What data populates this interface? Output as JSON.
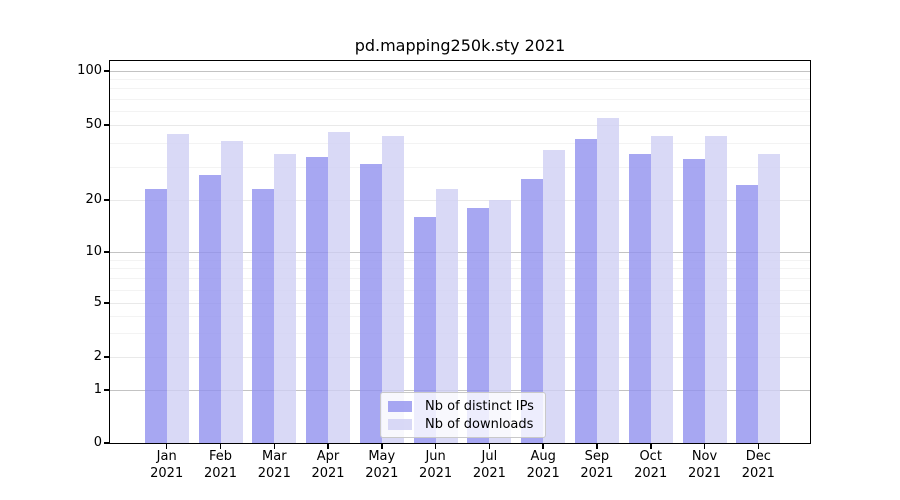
{
  "figure": {
    "title": "pd.mapping250k.sty 2021"
  },
  "legend": {
    "items": [
      {
        "label": "Nb of distinct IPs",
        "color": "#9191ef"
      },
      {
        "label": "Nb of downloads",
        "color": "#cfcff4"
      }
    ]
  },
  "y_axis": {
    "ticks": [
      {
        "label": "100",
        "value": 100
      },
      {
        "label": "50",
        "value": 50
      },
      {
        "label": "20",
        "value": 20
      },
      {
        "label": "10",
        "value": 10
      },
      {
        "label": "5",
        "value": 5
      },
      {
        "label": "2",
        "value": 2
      },
      {
        "label": "1",
        "value": 1
      },
      {
        "label": "0",
        "value": 0
      }
    ],
    "strong_gridline_values": [
      1,
      10,
      100
    ],
    "minor_gridline_values": [
      3,
      4,
      6,
      7,
      8,
      9,
      30,
      40,
      60,
      70,
      80,
      90
    ]
  },
  "x_axis": {
    "months": [
      "Jan",
      "Feb",
      "Mar",
      "Apr",
      "May",
      "Jun",
      "Jul",
      "Aug",
      "Sep",
      "Oct",
      "Nov",
      "Dec"
    ],
    "year": "2021"
  },
  "chart_data": {
    "type": "bar",
    "title": "pd.mapping250k.sty 2021",
    "categories": [
      "Jan 2021",
      "Feb 2021",
      "Mar 2021",
      "Apr 2021",
      "May 2021",
      "Jun 2021",
      "Jul 2021",
      "Aug 2021",
      "Sep 2021",
      "Oct 2021",
      "Nov 2021",
      "Dec 2021"
    ],
    "series": [
      {
        "name": "Nb of distinct IPs",
        "color": "#9191ef",
        "values": [
          23,
          27,
          23,
          34,
          31,
          16,
          18,
          26,
          42,
          35,
          33,
          24
        ]
      },
      {
        "name": "Nb of downloads",
        "color": "#cfcff4",
        "values": [
          45,
          41,
          35,
          46,
          44,
          23,
          20,
          37,
          55,
          44,
          44,
          35
        ]
      }
    ],
    "yscale": "symlog (log above 1, linear 0-1)",
    "y_ticks": [
      0,
      1,
      2,
      5,
      10,
      20,
      50,
      100
    ],
    "ylim": [
      0,
      115
    ],
    "grid": true,
    "legend_position": "lower center"
  }
}
